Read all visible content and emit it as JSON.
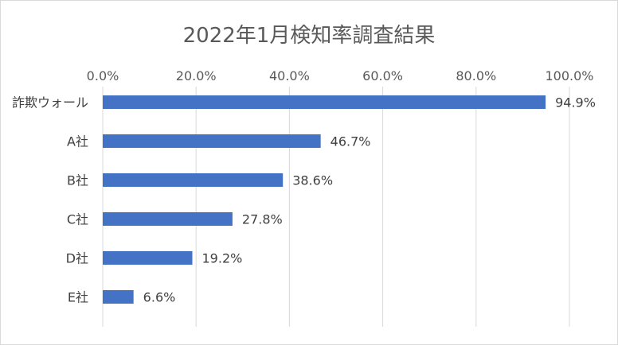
{
  "chart_data": {
    "type": "bar",
    "orientation": "horizontal",
    "title": "2022年1月検知率調査結果",
    "categories": [
      "詐欺ウォール",
      "A社",
      "B社",
      "C社",
      "D社",
      "E社"
    ],
    "values": [
      94.9,
      46.7,
      38.6,
      27.8,
      19.2,
      6.6
    ],
    "data_labels": [
      "94.9%",
      "46.7%",
      "38.6%",
      "27.8%",
      "19.2%",
      "6.6%"
    ],
    "xlim": [
      0,
      100
    ],
    "x_ticks": [
      0,
      20,
      40,
      60,
      80,
      100
    ],
    "x_tick_labels": [
      "0.0%",
      "20.0%",
      "40.0%",
      "60.0%",
      "80.0%",
      "100.0%"
    ],
    "x_axis_position": "top",
    "grid": true,
    "legend": "none",
    "bar_color": "#4472c4"
  }
}
